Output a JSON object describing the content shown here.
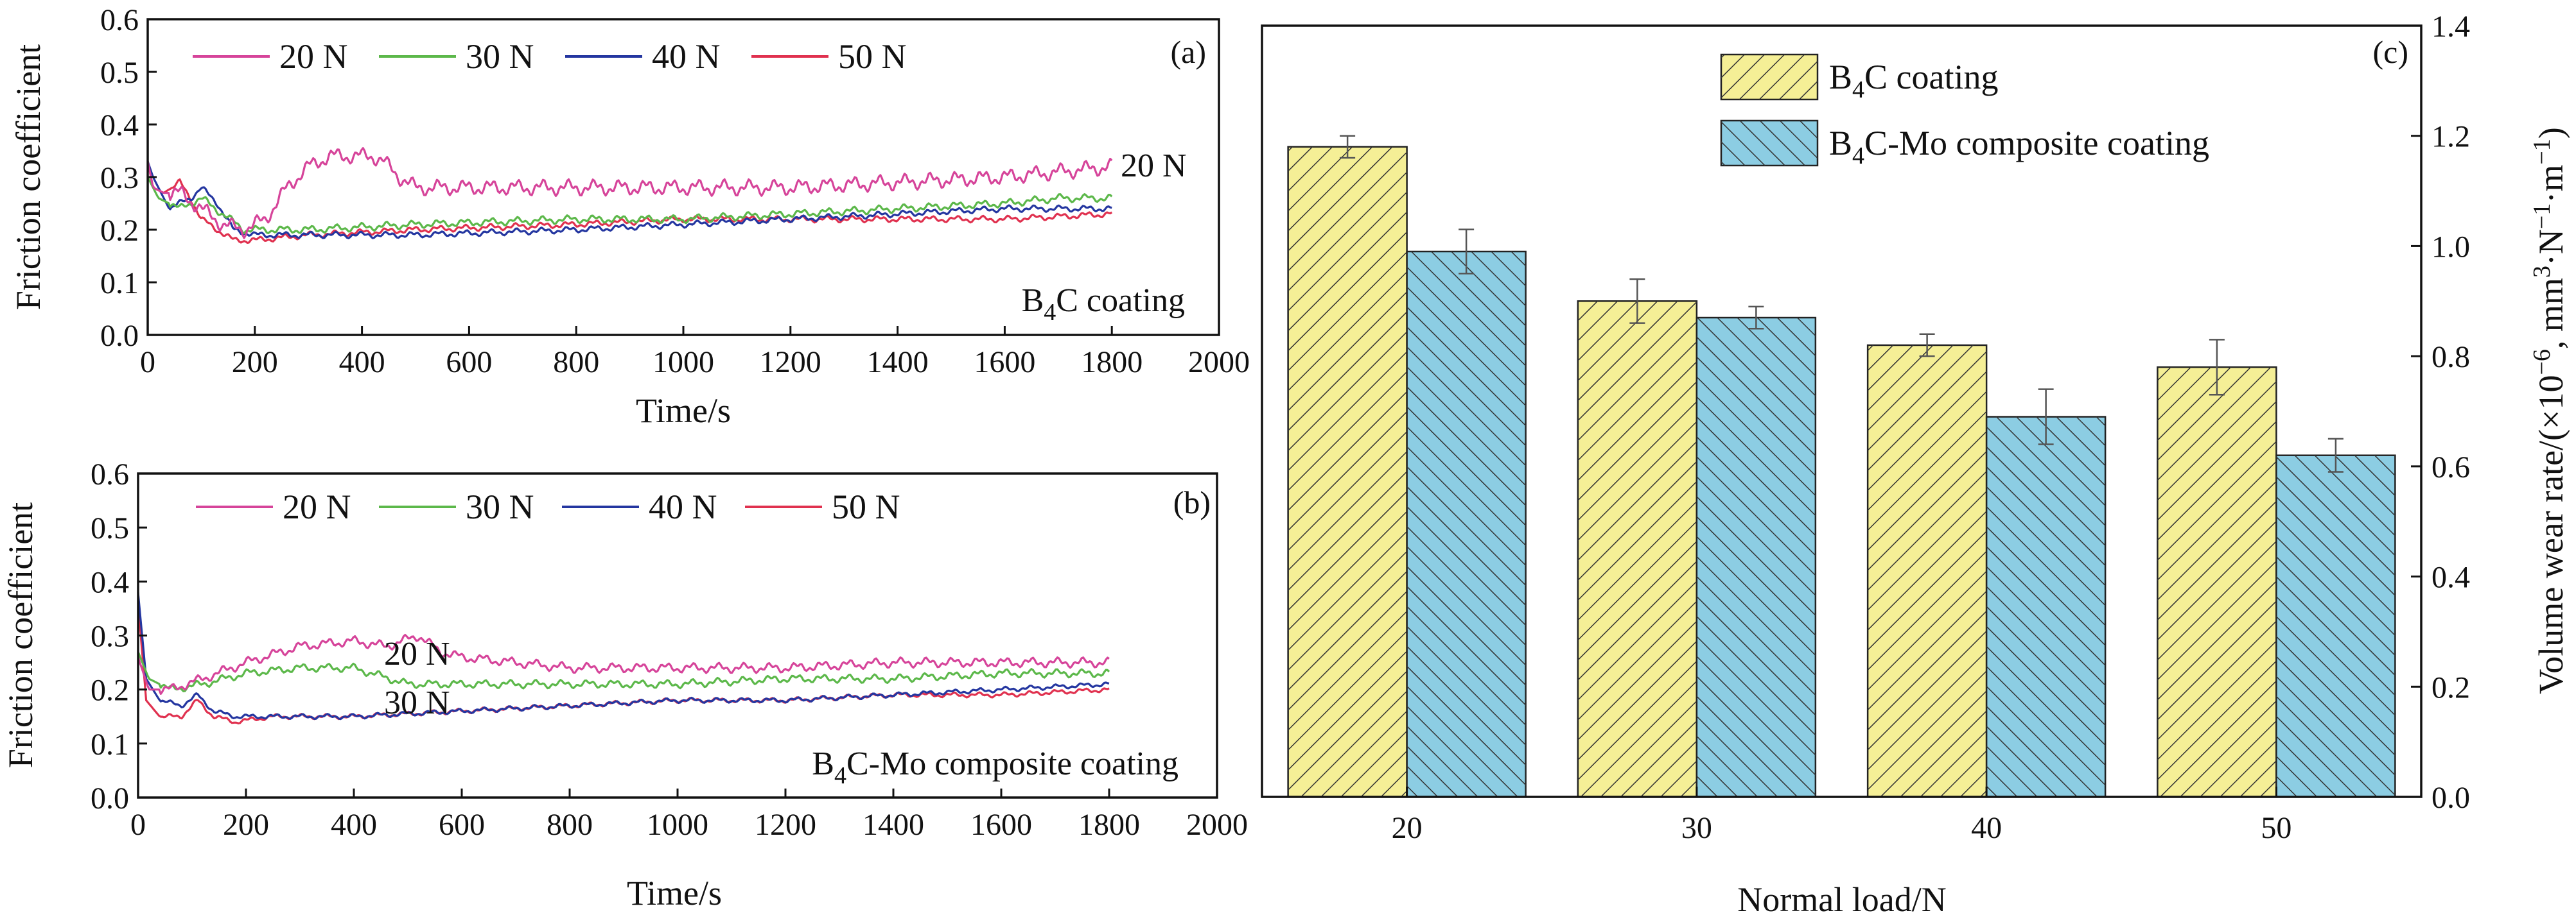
{
  "chart_data": [
    {
      "id": "a",
      "type": "line",
      "panel_label": "(a)",
      "annotation": {
        "sub_a": "B",
        "sub_b": "4",
        "sub_c": "C coating"
      },
      "line_label": "20 N",
      "xlabel": "Time/s",
      "ylabel": "Friction coefficient",
      "xlim": [
        0,
        2000
      ],
      "ylim": [
        0,
        0.6
      ],
      "xticks": [
        "0",
        "200",
        "400",
        "600",
        "800",
        "1000",
        "1200",
        "1400",
        "1600",
        "1800",
        "2000"
      ],
      "yticks": [
        "0.0",
        "0.1",
        "0.2",
        "0.3",
        "0.4",
        "0.5",
        "0.6"
      ],
      "legend_position": "top",
      "grid": false,
      "series": [
        {
          "name": "20 N",
          "color": "#d6449a",
          "noise": 0.01,
          "x": [
            0,
            10,
            30,
            60,
            100,
            140,
            180,
            220,
            260,
            300,
            340,
            380,
            420,
            440,
            470,
            500,
            600,
            800,
            1000,
            1200,
            1400,
            1600,
            1700,
            1800
          ],
          "y": [
            0.33,
            0.28,
            0.27,
            0.27,
            0.24,
            0.21,
            0.2,
            0.22,
            0.28,
            0.32,
            0.34,
            0.34,
            0.34,
            0.33,
            0.3,
            0.28,
            0.28,
            0.28,
            0.28,
            0.28,
            0.29,
            0.3,
            0.31,
            0.32
          ]
        },
        {
          "name": "30 N",
          "color": "#5cb84a",
          "noise": 0.005,
          "x": [
            0,
            20,
            60,
            100,
            140,
            180,
            300,
            500,
            800,
            1000,
            1200,
            1400,
            1600,
            1700,
            1800
          ],
          "y": [
            0.3,
            0.26,
            0.24,
            0.26,
            0.23,
            0.2,
            0.2,
            0.21,
            0.22,
            0.22,
            0.23,
            0.24,
            0.25,
            0.26,
            0.26
          ]
        },
        {
          "name": "40 N",
          "color": "#2436a0",
          "noise": 0.004,
          "x": [
            0,
            10,
            40,
            80,
            100,
            130,
            160,
            200,
            300,
            500,
            800,
            1000,
            1200,
            1400,
            1600,
            1800
          ],
          "y": [
            0.33,
            0.3,
            0.24,
            0.26,
            0.28,
            0.25,
            0.2,
            0.19,
            0.19,
            0.19,
            0.2,
            0.21,
            0.22,
            0.23,
            0.24,
            0.24
          ]
        },
        {
          "name": "50 N",
          "color": "#e0314f",
          "noise": 0.004,
          "x": [
            0,
            10,
            30,
            60,
            80,
            100,
            130,
            160,
            200,
            300,
            500,
            800,
            1000,
            1200,
            1400,
            1600,
            1800
          ],
          "y": [
            0.33,
            0.28,
            0.27,
            0.29,
            0.26,
            0.22,
            0.2,
            0.18,
            0.18,
            0.19,
            0.2,
            0.21,
            0.22,
            0.22,
            0.22,
            0.22,
            0.23
          ]
        }
      ]
    },
    {
      "id": "b",
      "type": "line",
      "panel_label": "(b)",
      "annotation": {
        "sub_a": "B",
        "sub_b": "4",
        "sub_c": "C-Mo composite coating"
      },
      "line_labels": [
        "20 N",
        "30 N"
      ],
      "xlabel": "Time/s",
      "ylabel": "Friction coefficient",
      "xlim": [
        0,
        2000
      ],
      "ylim": [
        0,
        0.6
      ],
      "xticks": [
        "0",
        "200",
        "400",
        "600",
        "800",
        "1000",
        "1200",
        "1400",
        "1600",
        "1800",
        "2000"
      ],
      "yticks": [
        "0.0",
        "0.1",
        "0.2",
        "0.3",
        "0.4",
        "0.5",
        "0.6"
      ],
      "legend_position": "top",
      "grid": false,
      "series": [
        {
          "name": "20 N",
          "color": "#d6449a",
          "noise": 0.006,
          "x": [
            0,
            20,
            60,
            120,
            200,
            300,
            400,
            460,
            520,
            560,
            600,
            700,
            800,
            1000,
            1200,
            1400,
            1600,
            1800
          ],
          "y": [
            0.26,
            0.2,
            0.2,
            0.22,
            0.25,
            0.28,
            0.29,
            0.28,
            0.3,
            0.27,
            0.26,
            0.25,
            0.24,
            0.24,
            0.24,
            0.25,
            0.25,
            0.25
          ]
        },
        {
          "name": "30 N",
          "color": "#5cb84a",
          "noise": 0.005,
          "x": [
            0,
            20,
            60,
            120,
            200,
            300,
            400,
            500,
            600,
            800,
            1000,
            1200,
            1400,
            1600,
            1800
          ],
          "y": [
            0.27,
            0.22,
            0.2,
            0.21,
            0.23,
            0.24,
            0.24,
            0.21,
            0.21,
            0.21,
            0.21,
            0.22,
            0.22,
            0.23,
            0.23
          ]
        },
        {
          "name": "40 N",
          "color": "#2436a0",
          "noise": 0.003,
          "x": [
            0,
            15,
            40,
            80,
            110,
            140,
            180,
            250,
            400,
            600,
            800,
            1000,
            1200,
            1400,
            1600,
            1800
          ],
          "y": [
            0.38,
            0.22,
            0.18,
            0.17,
            0.19,
            0.16,
            0.15,
            0.15,
            0.15,
            0.16,
            0.17,
            0.18,
            0.18,
            0.19,
            0.2,
            0.21
          ]
        },
        {
          "name": "50 N",
          "color": "#e0314f",
          "noise": 0.003,
          "x": [
            0,
            15,
            40,
            80,
            110,
            140,
            180,
            250,
            400,
            600,
            800,
            1000,
            1200,
            1400,
            1600,
            1800
          ],
          "y": [
            0.36,
            0.18,
            0.15,
            0.15,
            0.18,
            0.15,
            0.14,
            0.15,
            0.15,
            0.16,
            0.17,
            0.18,
            0.18,
            0.19,
            0.19,
            0.2
          ]
        }
      ]
    },
    {
      "id": "c",
      "type": "bar",
      "panel_label": "(c)",
      "categories": [
        "20",
        "30",
        "40",
        "50"
      ],
      "xlabel": "Normal load/N",
      "ylabel": {
        "a": "Volume wear rate/(×10",
        "b": "−6",
        "c": ", mm",
        "d": "3",
        "e": "·N",
        "f": "−1",
        "g": "·m",
        "h": "−1",
        "i": ")"
      },
      "ylim": [
        0,
        1.4
      ],
      "yticks": [
        "0.0",
        "0.2",
        "0.4",
        "0.6",
        "0.8",
        "1.0",
        "1.2",
        "1.4"
      ],
      "legend_position": "top-center",
      "grid": false,
      "series": [
        {
          "name": {
            "a": "B",
            "b": "4",
            "c": "C coating"
          },
          "color": "#f5ef96",
          "hatch": "forward",
          "values": [
            1.18,
            0.9,
            0.82,
            0.78
          ],
          "errors": [
            0.02,
            0.04,
            0.02,
            0.05
          ]
        },
        {
          "name": {
            "a": "B",
            "b": "4",
            "c": "C-Mo composite coating"
          },
          "color": "#8ccde3",
          "hatch": "back",
          "values": [
            0.99,
            0.87,
            0.69,
            0.62
          ],
          "errors": [
            0.04,
            0.02,
            0.05,
            0.03
          ]
        }
      ]
    }
  ]
}
